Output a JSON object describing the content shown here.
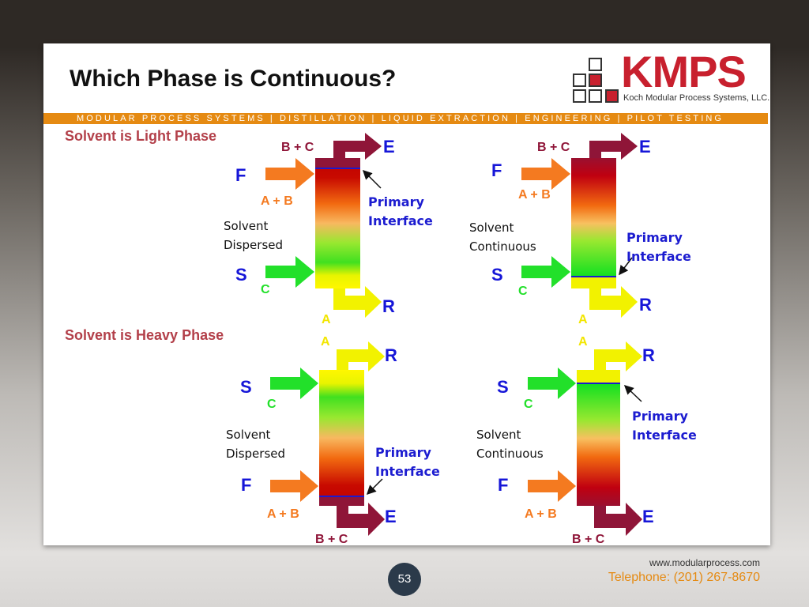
{
  "title": "Which Phase is Continuous?",
  "logo": {
    "name": "KMPS",
    "subtitle": "Koch Modular Process Systems, LLC."
  },
  "band": "MODULAR PROCESS SYSTEMS | DISTILLATION | LIQUID EXTRACTION | ENGINEERING | PILOT TESTING",
  "sections": {
    "light": "Solvent is Light Phase",
    "heavy": "Solvent is Heavy Phase"
  },
  "labels": {
    "F": "F",
    "S": "S",
    "E": "E",
    "R": "R",
    "AB": "A + B",
    "BC": "B + C",
    "C": "C",
    "A": "A"
  },
  "texts": {
    "dispersed": [
      "Solvent",
      "Dispersed"
    ],
    "continuous": [
      "Solvent",
      "Continuous"
    ],
    "interface": [
      "Primary",
      "Interface"
    ]
  },
  "colors": {
    "feed": "#f47a20",
    "solvent": "#22e02a",
    "extract": "#8f1538",
    "raffinate": "#f2e600",
    "interface": "#1a1ad0"
  },
  "footer": {
    "url": "www.modularprocess.com",
    "telephone": "Telephone: (201) 267-8670",
    "page": "53"
  }
}
